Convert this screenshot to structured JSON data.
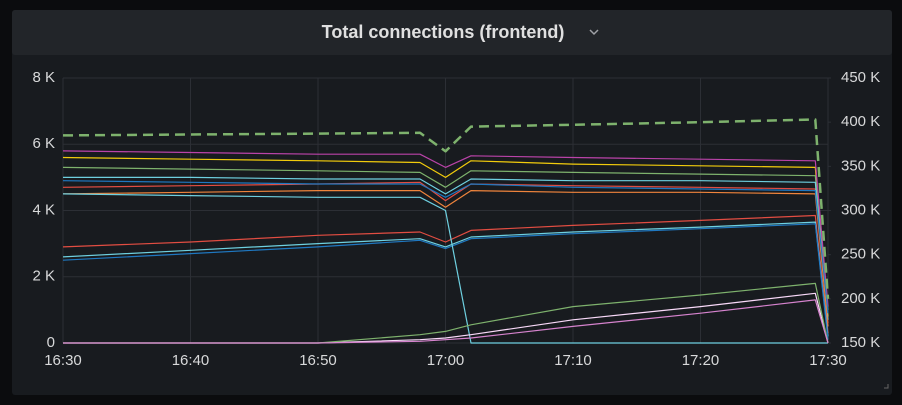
{
  "chart_data": {
    "type": "line",
    "title": "Total connections (frontend)",
    "x": [
      "16:30",
      "16:40",
      "16:50",
      "16:58",
      "17:00",
      "17:02",
      "17:10",
      "17:20",
      "17:29",
      "17:30"
    ],
    "xlim": [
      "16:30",
      "17:30"
    ],
    "xticks": [
      "16:30",
      "16:40",
      "16:50",
      "17:00",
      "17:10",
      "17:20",
      "17:30"
    ],
    "ylim": [
      0,
      8000
    ],
    "yticks": [
      {
        "value": 0,
        "label": "0"
      },
      {
        "value": 2000,
        "label": "2 K"
      },
      {
        "value": 4000,
        "label": "4 K"
      },
      {
        "value": 6000,
        "label": "6 K"
      },
      {
        "value": 8000,
        "label": "8 K"
      }
    ],
    "y2lim": [
      150000,
      450000
    ],
    "y2ticks": [
      {
        "value": 150000,
        "label": "150 K"
      },
      {
        "value": 200000,
        "label": "200 K"
      },
      {
        "value": 250000,
        "label": "250 K"
      },
      {
        "value": 300000,
        "label": "300 K"
      },
      {
        "value": 350000,
        "label": "350 K"
      },
      {
        "value": 400000,
        "label": "400 K"
      },
      {
        "value": 450000,
        "label": "450 K"
      }
    ],
    "grid": true,
    "series": [
      {
        "color": "#f2cc0c",
        "values": [
          5600,
          5550,
          5500,
          5450,
          5000,
          5500,
          5400,
          5350,
          5300,
          800
        ]
      },
      {
        "color": "#e24d42",
        "values": [
          4700,
          4750,
          4800,
          4850,
          4300,
          4800,
          4750,
          4700,
          4650,
          600
        ]
      },
      {
        "color": "#7eb26d",
        "values": [
          5300,
          5250,
          5200,
          5150,
          4700,
          5200,
          5150,
          5100,
          5050,
          1000
        ]
      },
      {
        "color": "#6ed0e0",
        "values": [
          5000,
          5000,
          4950,
          4950,
          4500,
          4950,
          4900,
          4900,
          4850,
          700
        ]
      },
      {
        "color": "#ef843c",
        "values": [
          4500,
          4550,
          4600,
          4600,
          4100,
          4600,
          4550,
          4550,
          4500,
          500
        ]
      },
      {
        "color": "#ba43a9",
        "values": [
          5800,
          5750,
          5700,
          5700,
          5300,
          5650,
          5600,
          5550,
          5500,
          1100
        ]
      },
      {
        "color": "#1f78c1",
        "values": [
          4900,
          4850,
          4800,
          4800,
          4400,
          4800,
          4700,
          4650,
          4600,
          900
        ]
      },
      {
        "color": "#e24d42",
        "values": [
          2900,
          3050,
          3250,
          3350,
          3050,
          3400,
          3550,
          3700,
          3850,
          300
        ]
      },
      {
        "color": "#6ed0e0",
        "values": [
          2600,
          2800,
          3000,
          3150,
          2900,
          3200,
          3350,
          3500,
          3650,
          200
        ]
      },
      {
        "color": "#1f78c1",
        "values": [
          2500,
          2700,
          2900,
          3100,
          2850,
          3150,
          3300,
          3450,
          3600,
          100
        ]
      },
      {
        "color": "#6ed0e0",
        "values": [
          4500,
          4450,
          4400,
          4400,
          4000,
          0,
          0,
          0,
          0,
          0
        ]
      },
      {
        "color": "#f9d9f9",
        "values": [
          0,
          0,
          0,
          100,
          150,
          250,
          700,
          1100,
          1500,
          0
        ]
      },
      {
        "color": "#7eb26d",
        "values": [
          0,
          0,
          0,
          250,
          350,
          550,
          1100,
          1450,
          1800,
          0
        ]
      },
      {
        "color": "#d683ce",
        "values": [
          0,
          0,
          0,
          50,
          100,
          150,
          500,
          900,
          1300,
          0
        ]
      },
      {
        "color": "#7eb26d",
        "axis": "y2",
        "dashed": true,
        "values": [
          385000,
          386000,
          387000,
          388000,
          367000,
          395000,
          397000,
          400000,
          403000,
          200000
        ]
      }
    ]
  }
}
